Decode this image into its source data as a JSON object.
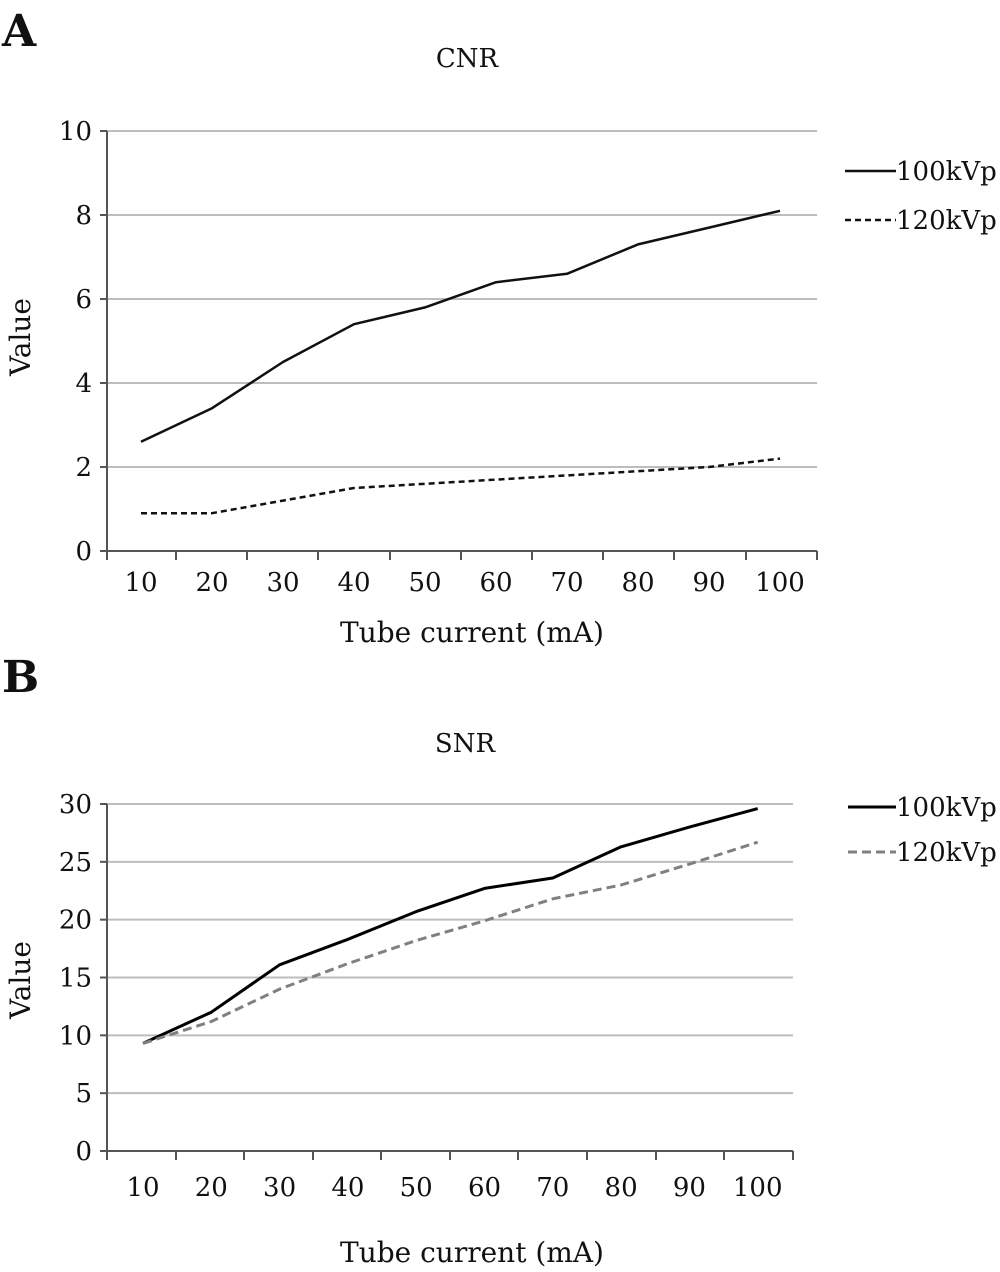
{
  "chart_data": [
    {
      "panel": "A",
      "type": "line",
      "title": "CNR",
      "xlabel": "Tube current (mA)",
      "ylabel": "Value",
      "categories": [
        "10",
        "20",
        "30",
        "40",
        "50",
        "60",
        "70",
        "80",
        "90",
        "100"
      ],
      "x": [
        10,
        20,
        30,
        40,
        50,
        60,
        70,
        80,
        90,
        100
      ],
      "ylim": [
        0,
        10
      ],
      "yticks": [
        "0",
        "2",
        "4",
        "6",
        "8",
        "10"
      ],
      "grid": true,
      "legend_position": "right",
      "series": [
        {
          "name": "100kVp",
          "style": "solid",
          "color": "#111111",
          "values": [
            2.6,
            3.4,
            4.5,
            5.4,
            5.8,
            6.4,
            6.6,
            7.3,
            7.7,
            8.1
          ]
        },
        {
          "name": "120kVp",
          "style": "dashed",
          "color": "#111111",
          "values": [
            0.9,
            0.9,
            1.2,
            1.5,
            1.6,
            1.7,
            1.8,
            1.9,
            2.0,
            2.2
          ]
        }
      ]
    },
    {
      "panel": "B",
      "type": "line",
      "title": "SNR",
      "xlabel": "Tube current (mA)",
      "ylabel": "Value",
      "categories": [
        "10",
        "20",
        "30",
        "40",
        "50",
        "60",
        "70",
        "80",
        "90",
        "100"
      ],
      "x": [
        10,
        20,
        30,
        40,
        50,
        60,
        70,
        80,
        90,
        100
      ],
      "ylim": [
        0,
        30
      ],
      "yticks": [
        "0",
        "5",
        "10",
        "15",
        "20",
        "25",
        "30"
      ],
      "grid": true,
      "legend_position": "right",
      "series": [
        {
          "name": "100kVp",
          "style": "solid",
          "color": "#000000",
          "values": [
            9.3,
            12.0,
            16.1,
            18.3,
            20.7,
            22.7,
            23.6,
            26.3,
            28.0,
            29.6
          ]
        },
        {
          "name": "120kVp",
          "style": "dashed",
          "color": "#808080",
          "values": [
            9.3,
            11.2,
            14.0,
            16.2,
            18.2,
            19.9,
            21.8,
            23.0,
            24.8,
            26.7
          ]
        }
      ]
    }
  ]
}
